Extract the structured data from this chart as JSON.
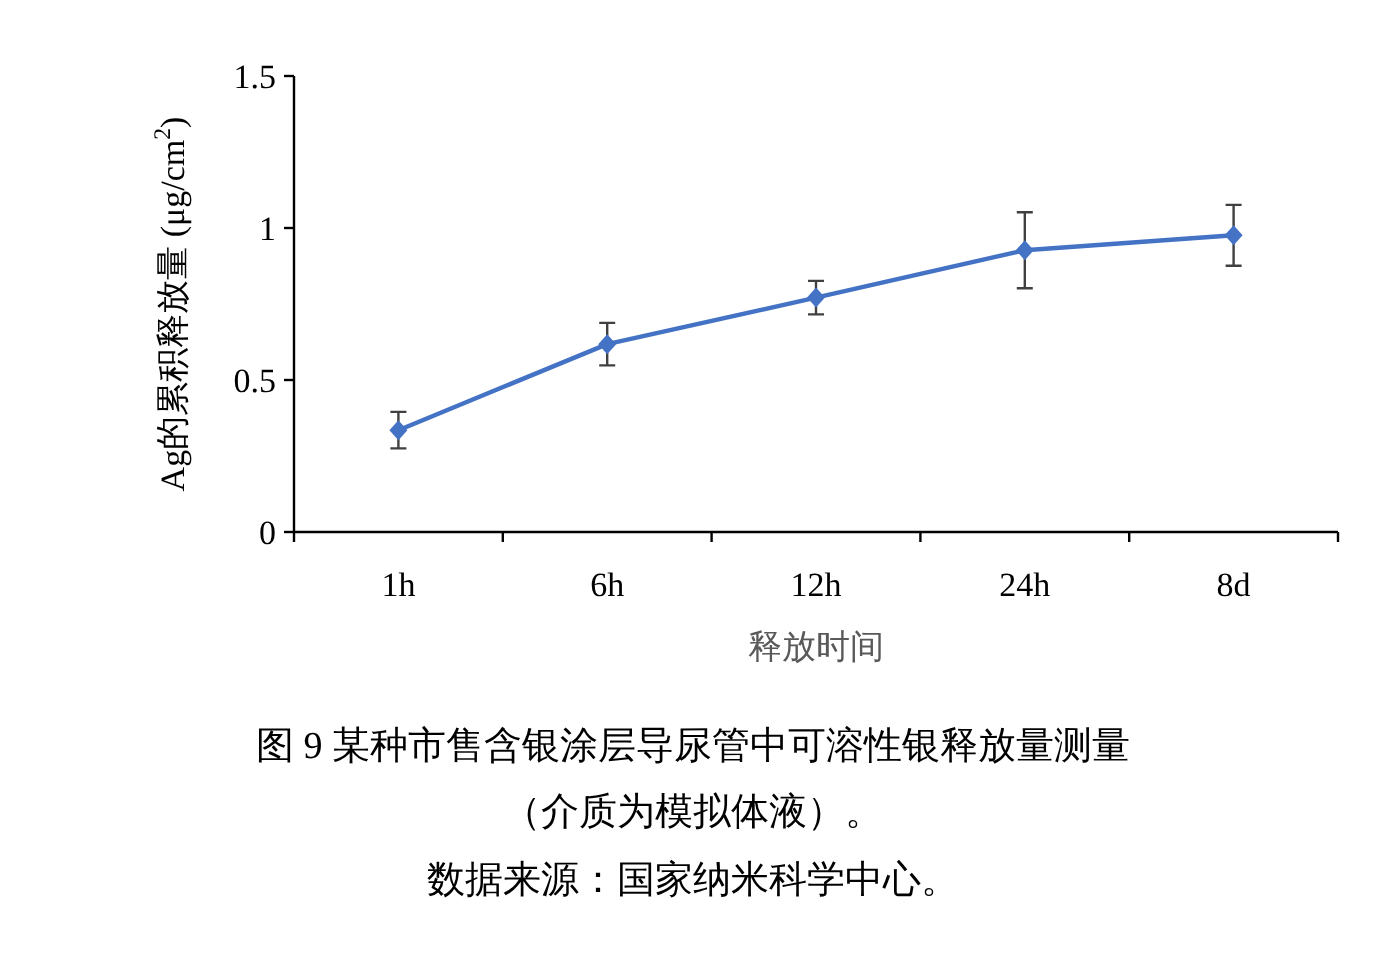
{
  "chart_data": {
    "type": "line",
    "title": "图 9 某种市售含银涂层导尿管中可溶性银释放量测量",
    "subtitle": "（介质为模拟体液）。",
    "annotations": [
      "数据来源：国家纳米科学中心。"
    ],
    "xlabel": "释放时间",
    "ylabel": "Ag的累积释放量 (μg/cm$^{2}$)",
    "categories": [
      "1h",
      "6h",
      "12h",
      "24h",
      "8d"
    ],
    "series": [
      {
        "color": "#4472c4",
        "values": [
          0.335,
          0.618,
          0.771,
          0.927,
          0.976
        ],
        "errors": [
          0.06,
          0.07,
          0.055,
          0.125,
          0.1
        ]
      }
    ],
    "ylim": [
      0,
      1.5
    ],
    "yticks": [
      0,
      {
        "value": 0.5,
        "label": "0.5"
      },
      1,
      1.5
    ],
    "grid": false,
    "marker": "diamond",
    "line_style": "solid"
  }
}
